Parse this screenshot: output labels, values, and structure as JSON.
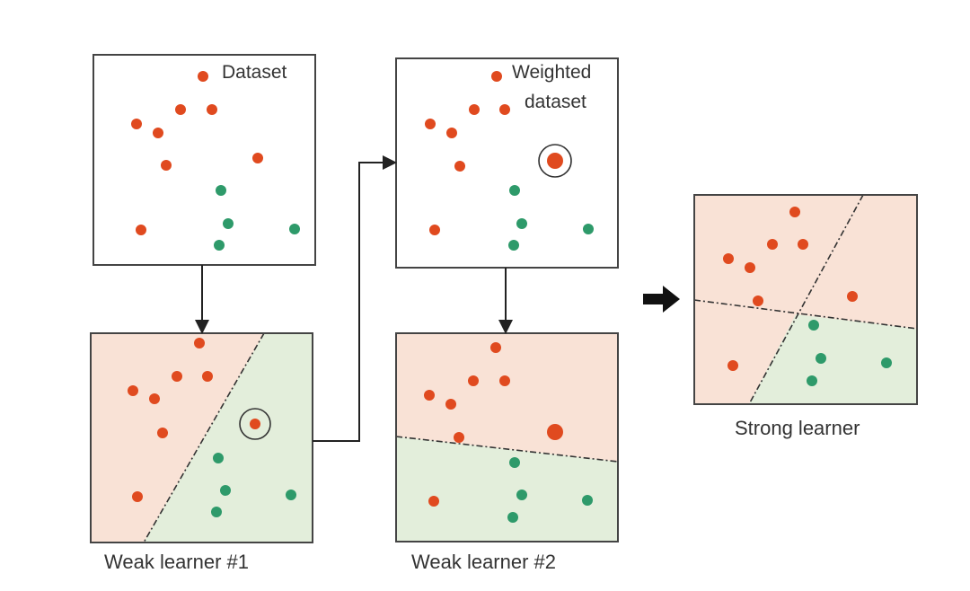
{
  "panels": {
    "dataset": {
      "label": "Dataset"
    },
    "weighted": {
      "label_line1": "Weighted",
      "label_line2": "dataset"
    },
    "weak1": {
      "caption": "Weak learner #1"
    },
    "weak2": {
      "caption": "Weak learner #2"
    },
    "strong": {
      "caption": "Strong learner"
    }
  },
  "colors": {
    "red_point": "#e04a1f",
    "green_point": "#2e9a6a",
    "red_region": "#f9e2d6",
    "green_region": "#e3eedb",
    "border": "#444444"
  }
}
